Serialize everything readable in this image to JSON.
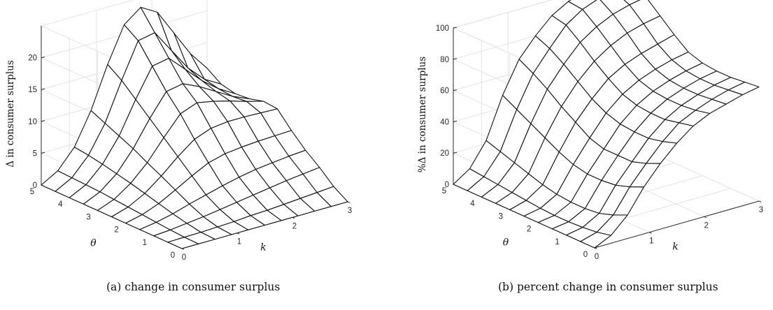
{
  "chart_data": [
    {
      "type": "surface",
      "caption": "(a) change in consumer surplus",
      "xlabel": "k",
      "ylabel": "θ",
      "zlabel": "Δ in consumer surplus",
      "x_ticks": [
        "0",
        "1",
        "2",
        "3"
      ],
      "y_ticks": [
        "0",
        "1",
        "2",
        "3",
        "4",
        "5"
      ],
      "z_ticks": [
        "0",
        "5",
        "10",
        "15",
        "20"
      ],
      "xlim": [
        0,
        3
      ],
      "ylim": [
        0,
        5
      ],
      "zlim": [
        0,
        25
      ],
      "grid": true,
      "k": [
        0,
        0.3,
        0.6,
        0.9,
        1.2,
        1.5,
        1.8,
        2.1,
        2.4,
        2.7,
        3.0
      ],
      "theta": [
        0,
        0.5,
        1,
        1.5,
        2,
        2.5,
        3,
        3.5,
        4,
        4.5,
        5
      ],
      "z": [
        [
          0,
          0,
          0,
          0,
          0,
          0,
          0,
          0,
          0,
          0,
          0
        ],
        [
          0,
          0.05,
          0.1,
          0.2,
          0.3,
          0.5,
          0.6,
          0.8,
          1.0,
          1.2,
          1.4
        ],
        [
          0,
          0.2,
          0.5,
          0.8,
          1.2,
          1.6,
          2.0,
          2.4,
          2.8,
          3.1,
          3.4
        ],
        [
          0,
          0.4,
          1.0,
          1.8,
          2.5,
          3.2,
          3.8,
          4.3,
          4.6,
          4.9,
          5.1
        ],
        [
          0,
          0.6,
          1.6,
          3.0,
          4.5,
          5.8,
          6.5,
          6.8,
          7.0,
          7.1,
          7.2
        ],
        [
          0,
          0.8,
          2.2,
          4.2,
          6.5,
          8.5,
          9.5,
          9.8,
          9.8,
          9.7,
          9.6
        ],
        [
          0,
          1.0,
          2.8,
          5.3,
          8.5,
          11.5,
          12.5,
          12.0,
          11.3,
          10.5,
          9.8
        ],
        [
          0,
          1.2,
          3.3,
          6.5,
          10.5,
          14.0,
          14.5,
          13.3,
          11.8,
          10.3,
          9.2
        ],
        [
          0,
          1.3,
          3.8,
          7.5,
          12.5,
          17.0,
          17.5,
          15.0,
          12.5,
          10.5,
          9.0
        ],
        [
          0,
          1.4,
          4.2,
          8.5,
          14.5,
          20.0,
          20.5,
          17.0,
          13.5,
          11.0,
          9.5
        ],
        [
          0,
          1.5,
          4.5,
          9.5,
          16.0,
          21.5,
          23.5,
          22.0,
          18.0,
          14.0,
          11.0
        ]
      ]
    },
    {
      "type": "surface",
      "caption": "(b) percent change in consumer surplus",
      "xlabel": "k",
      "ylabel": "θ",
      "zlabel": "%Δ in consumer surplus",
      "x_ticks": [
        "0",
        "1",
        "2",
        "3"
      ],
      "y_ticks": [
        "0",
        "1",
        "2",
        "3",
        "4",
        "5"
      ],
      "z_ticks": [
        "0",
        "20",
        "40",
        "60",
        "80",
        "100"
      ],
      "xlim": [
        0,
        3
      ],
      "ylim": [
        0,
        5
      ],
      "zlim": [
        0,
        100
      ],
      "grid": true,
      "k": [
        0,
        0.3,
        0.6,
        0.9,
        1.2,
        1.5,
        1.8,
        2.1,
        2.4,
        2.7,
        3.0
      ],
      "theta": [
        0,
        0.5,
        1,
        1.5,
        2,
        2.5,
        3,
        3.5,
        4,
        4.5,
        5
      ],
      "z": [
        [
          0,
          5,
          15,
          30,
          42,
          52,
          60,
          65,
          68,
          71,
          73
        ],
        [
          0,
          3,
          11,
          26,
          38,
          49,
          58,
          63,
          67,
          70,
          72
        ],
        [
          0,
          2,
          8,
          23,
          35,
          47,
          56,
          62,
          66,
          69,
          71
        ],
        [
          0,
          1.5,
          7,
          22,
          35,
          47,
          56,
          62,
          66,
          69,
          71
        ],
        [
          0,
          1.5,
          7,
          22,
          35,
          48,
          57,
          63,
          67,
          70,
          72
        ],
        [
          0,
          2,
          8,
          24,
          38,
          51,
          60,
          66,
          70,
          73,
          75
        ],
        [
          0,
          3,
          10,
          28,
          44,
          56,
          66,
          72,
          76,
          79,
          82
        ],
        [
          0,
          4,
          13,
          33,
          50,
          63,
          73,
          80,
          85,
          88,
          90
        ],
        [
          0,
          5,
          16,
          38,
          57,
          70,
          81,
          88,
          93,
          96,
          98
        ],
        [
          0,
          6,
          19,
          43,
          63,
          76,
          88,
          95,
          99,
          100,
          100
        ],
        [
          0,
          7,
          22,
          48,
          68,
          80,
          90,
          96,
          100,
          100,
          100
        ]
      ]
    }
  ]
}
